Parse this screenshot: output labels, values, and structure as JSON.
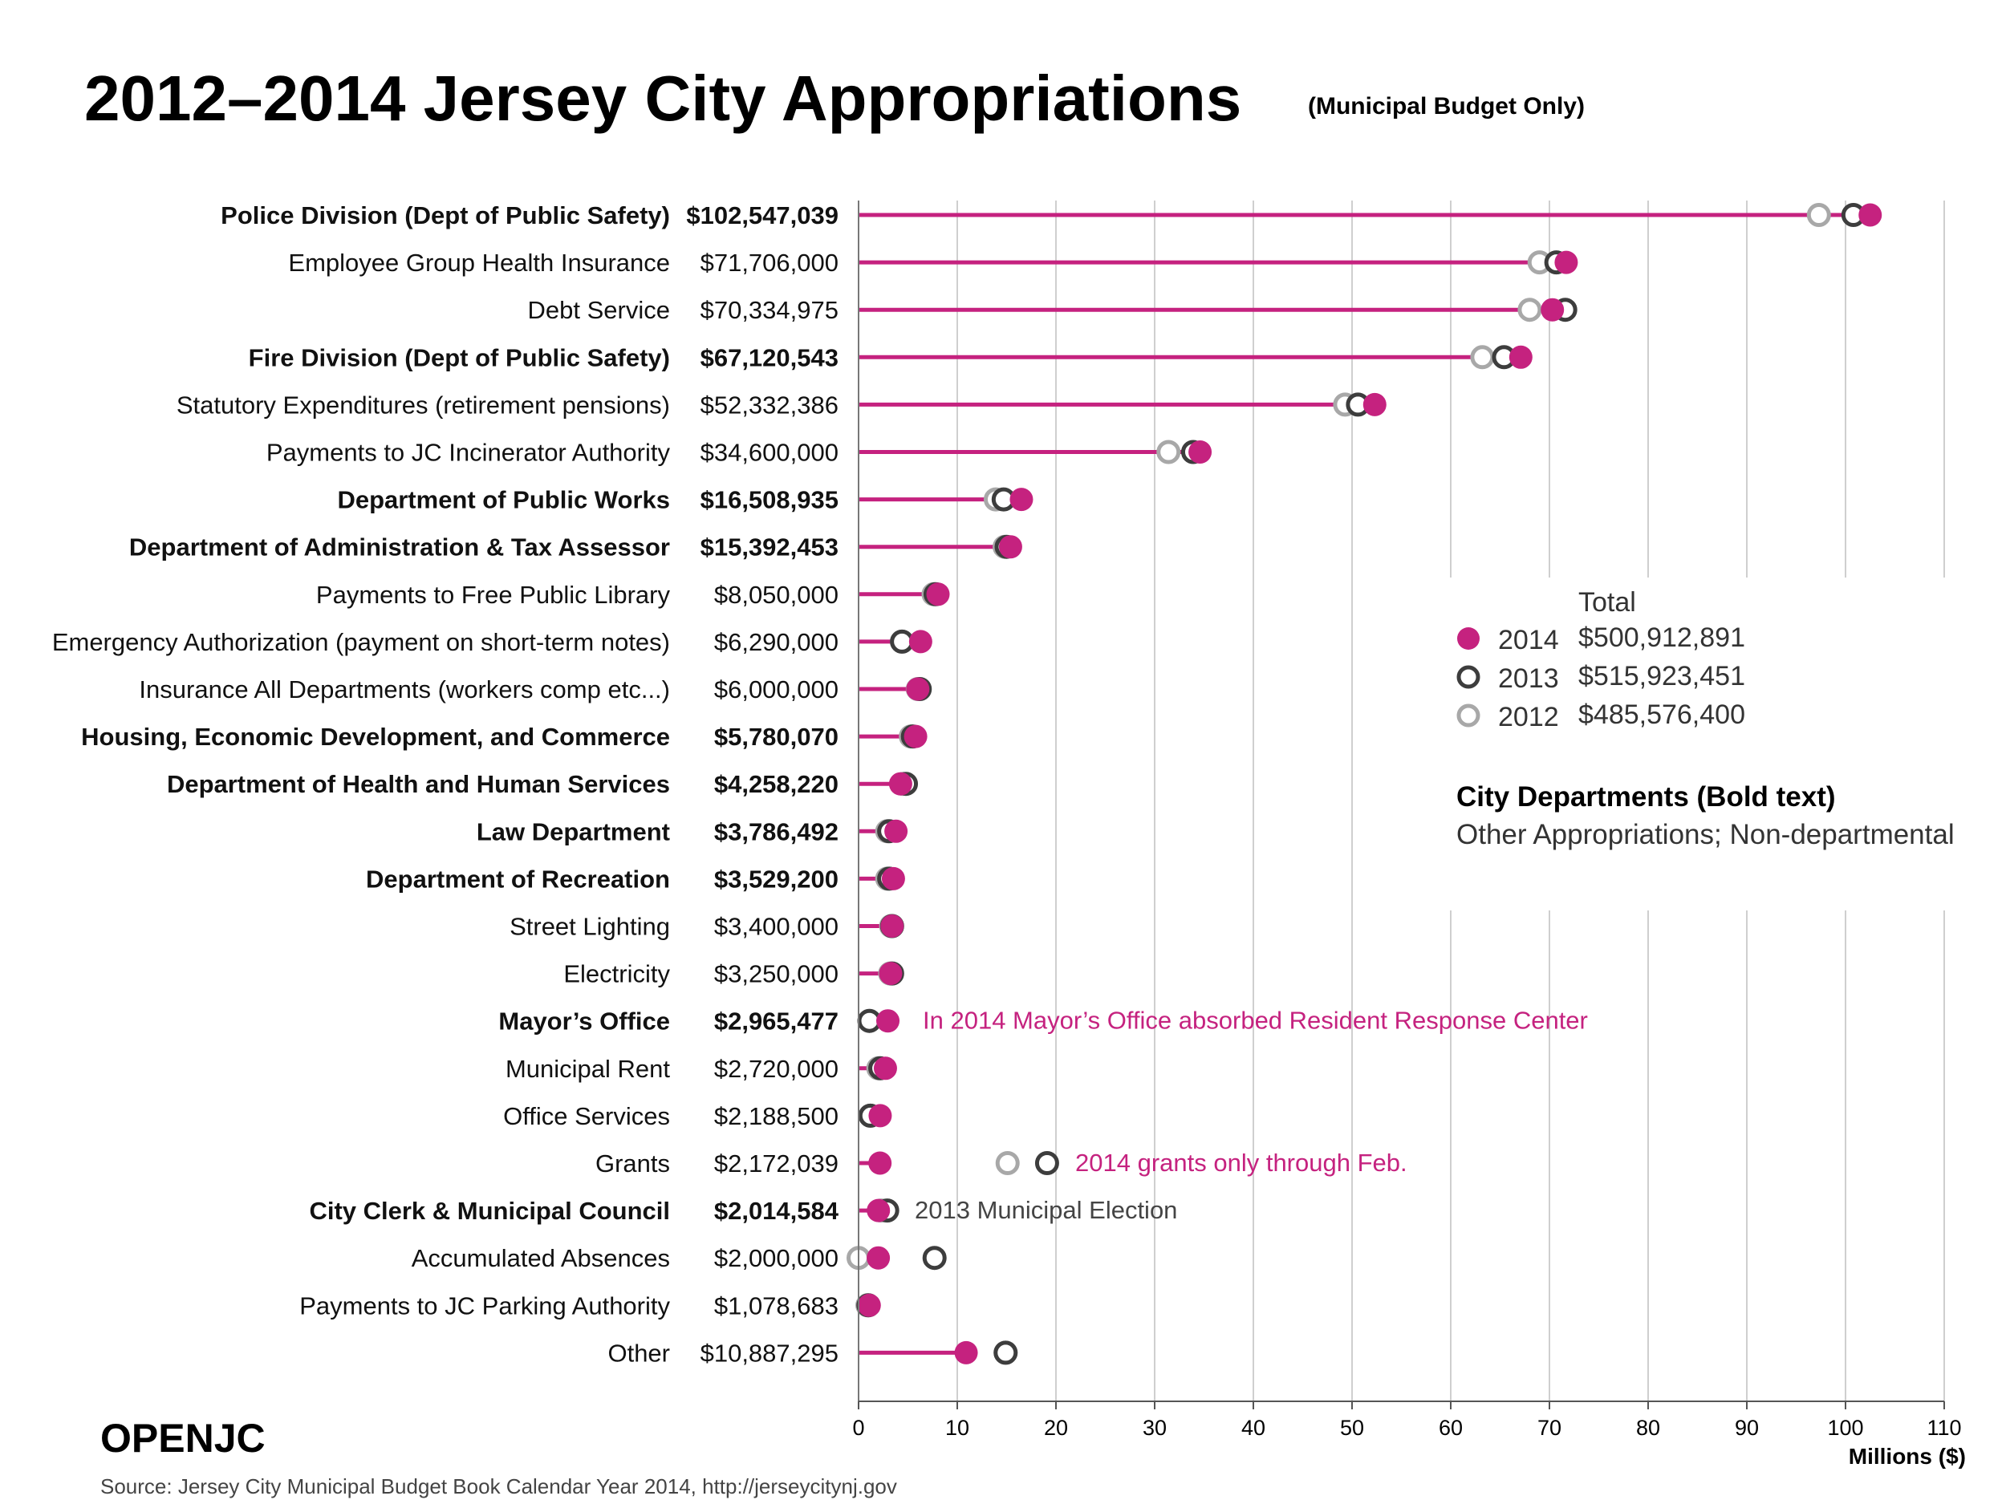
{
  "title": "2012–2014 Jersey City Appropriations",
  "subtitle": "(Municipal Budget Only)",
  "brand": "OPENJC",
  "source": "Source: Jersey City Municipal Budget Book Calendar Year 2014, http://jerseycitynj.gov",
  "colors": {
    "y2014": "#c5227f",
    "y2013": "#3d3d3d",
    "y2012": "#a8a8a8",
    "grid": "#cfcfcf",
    "annotation": "#c5227f"
  },
  "legend": {
    "total_header": "Total",
    "items": [
      {
        "year": "2014",
        "total": "$500,912,891",
        "style": "filled"
      },
      {
        "year": "2013",
        "total": "$515,923,451",
        "style": "dark-ring"
      },
      {
        "year": "2012",
        "total": "$485,576,400",
        "style": "light-ring"
      }
    ],
    "note_bold": "City Departments (Bold text)",
    "note_normal": "Other Appropriations; Non-departmental"
  },
  "chart_data": {
    "type": "dot-plot",
    "title": "2012–2014 Jersey City Appropriations",
    "subtitle": "(Municipal Budget Only)",
    "xlabel": "Millions ($)",
    "xlim": [
      0,
      110
    ],
    "xticks": [
      0,
      10,
      20,
      30,
      40,
      50,
      60,
      70,
      80,
      90,
      100,
      110
    ],
    "grid": true,
    "legend_position": "right-middle",
    "rows": [
      {
        "label": "Police Division (Dept of Public Safety)",
        "amount": "$102,547,039",
        "bold": true,
        "v2014": 102.5,
        "v2013": 100.8,
        "v2012": 97.3
      },
      {
        "label": "Employee Group Health Insurance",
        "amount": "$71,706,000",
        "bold": false,
        "v2014": 71.7,
        "v2013": 70.7,
        "v2012": 69.0
      },
      {
        "label": "Debt Service",
        "amount": "$70,334,975",
        "bold": false,
        "v2014": 70.3,
        "v2013": 71.6,
        "v2012": 68.0
      },
      {
        "label": "Fire Division (Dept of Public Safety)",
        "amount": "$67,120,543",
        "bold": true,
        "v2014": 67.1,
        "v2013": 65.4,
        "v2012": 63.2
      },
      {
        "label": "Statutory Expenditures (retirement pensions)",
        "amount": "$52,332,386",
        "bold": false,
        "v2014": 52.3,
        "v2013": 50.6,
        "v2012": 49.3
      },
      {
        "label": "Payments to JC Incinerator Authority",
        "amount": "$34,600,000",
        "bold": false,
        "v2014": 34.6,
        "v2013": 33.9,
        "v2012": 31.4
      },
      {
        "label": "Department of Public Works",
        "amount": "$16,508,935",
        "bold": true,
        "v2014": 16.5,
        "v2013": 14.7,
        "v2012": 13.9
      },
      {
        "label": "Department of Administration & Tax Assessor",
        "amount": "$15,392,453",
        "bold": true,
        "v2014": 15.4,
        "v2013": 15.0,
        "v2012": 14.8
      },
      {
        "label": "Payments to Free Public Library",
        "amount": "$8,050,000",
        "bold": false,
        "v2014": 8.05,
        "v2013": 7.8,
        "v2012": 7.6
      },
      {
        "label": "Emergency Authorization (payment on short-term notes)",
        "amount": "$6,290,000",
        "bold": false,
        "v2014": 6.29,
        "v2013": 4.4,
        "v2012": 4.4
      },
      {
        "label": "Insurance All Departments (workers comp etc...)",
        "amount": "$6,000,000",
        "bold": false,
        "v2014": 6.0,
        "v2013": 6.2,
        "v2012": 6.0
      },
      {
        "label": "Housing, Economic Development, and Commerce",
        "amount": "$5,780,070",
        "bold": true,
        "v2014": 5.78,
        "v2013": 5.5,
        "v2012": 5.3
      },
      {
        "label": "Department of Health and Human Services",
        "amount": "$4,258,220",
        "bold": true,
        "v2014": 4.26,
        "v2013": 4.8,
        "v2012": 4.5
      },
      {
        "label": "Law Department",
        "amount": "$3,786,492",
        "bold": true,
        "v2014": 3.79,
        "v2013": 3.1,
        "v2012": 2.9
      },
      {
        "label": "Department of Recreation",
        "amount": "$3,529,200",
        "bold": true,
        "v2014": 3.53,
        "v2013": 3.1,
        "v2012": 2.9
      },
      {
        "label": "Street Lighting",
        "amount": "$3,400,000",
        "bold": false,
        "v2014": 3.4,
        "v2013": 3.4,
        "v2012": 3.3
      },
      {
        "label": "Electricity",
        "amount": "$3,250,000",
        "bold": false,
        "v2014": 3.25,
        "v2013": 3.4,
        "v2012": 3.2
      },
      {
        "label": "Mayor’s Office",
        "amount": "$2,965,477",
        "bold": true,
        "v2014": 2.97,
        "v2013": 1.1,
        "v2012": 1.1
      },
      {
        "label": "Municipal Rent",
        "amount": "$2,720,000",
        "bold": false,
        "v2014": 2.72,
        "v2013": 2.2,
        "v2012": 2.0
      },
      {
        "label": "Office Services",
        "amount": "$2,188,500",
        "bold": false,
        "v2014": 2.19,
        "v2013": 1.2,
        "v2012": 1.2
      },
      {
        "label": "Grants",
        "amount": "$2,172,039",
        "bold": false,
        "v2014": 2.17,
        "v2013": 19.1,
        "v2012": 15.1
      },
      {
        "label": "City Clerk & Municipal Council",
        "amount": "$2,014,584",
        "bold": true,
        "v2014": 2.01,
        "v2013": 2.9,
        "v2012": 2.3
      },
      {
        "label": "Accumulated Absences",
        "amount": "$2,000,000",
        "bold": false,
        "v2014": 2.0,
        "v2013": 7.7,
        "v2012": 0.0
      },
      {
        "label": "Payments to JC Parking Authority",
        "amount": "$1,078,683",
        "bold": false,
        "v2014": 1.08,
        "v2013": 1.0,
        "v2012": 0.9
      },
      {
        "label": "Other",
        "amount": "$10,887,295",
        "bold": false,
        "v2014": 10.9,
        "v2013": 14.9,
        "v2012": 14.9
      }
    ],
    "annotations": [
      {
        "row": 17,
        "text": "In 2014 Mayor’s Office absorbed Resident Response Center",
        "color": "pink"
      },
      {
        "row": 20,
        "text": "2014 grants only through Feb.",
        "color": "pink"
      },
      {
        "row": 21,
        "text": "2013 Municipal Election",
        "color": "gray"
      }
    ]
  }
}
